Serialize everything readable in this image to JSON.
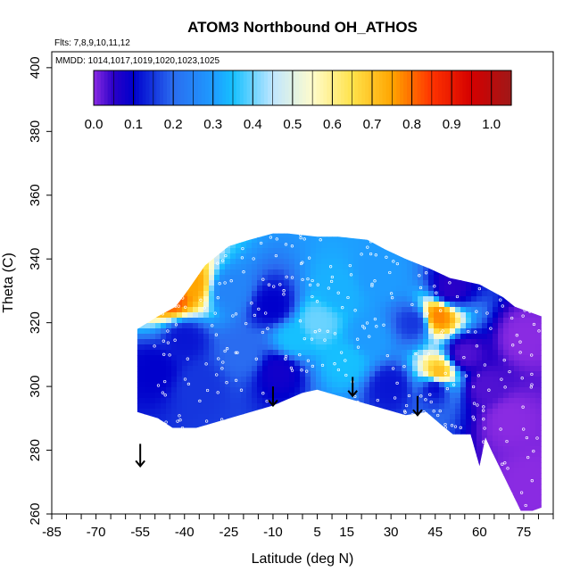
{
  "chart_data": {
    "type": "heatmap",
    "title": "ATOM3 Northbound OH_ATHOS",
    "flights_note": "Flts: 7,8,9,10,11,12",
    "dates_note": "MMDD: 1014,1017,1019,1020,1023,1025",
    "xlabel": "Latitude (deg N)",
    "ylabel": "Theta (C)",
    "xlim": [
      -85,
      85
    ],
    "ylim": [
      260,
      405
    ],
    "x_ticks": [
      {
        "value": -85,
        "label": "-85"
      },
      {
        "value": -70,
        "label": "-70"
      },
      {
        "value": -55,
        "label": "-55"
      },
      {
        "value": -40,
        "label": "-40"
      },
      {
        "value": -25,
        "label": "-25"
      },
      {
        "value": -10,
        "label": "-10"
      },
      {
        "value": 5,
        "label": "5"
      },
      {
        "value": 15,
        "label": "15"
      },
      {
        "value": 30,
        "label": "30"
      },
      {
        "value": 45,
        "label": "45"
      },
      {
        "value": 60,
        "label": "60"
      },
      {
        "value": 75,
        "label": "75"
      }
    ],
    "y_ticks": [
      {
        "value": 260,
        "label": "260"
      },
      {
        "value": 280,
        "label": "280"
      },
      {
        "value": 300,
        "label": "300"
      },
      {
        "value": 320,
        "label": "320"
      },
      {
        "value": 340,
        "label": "340"
      },
      {
        "value": 360,
        "label": "360"
      },
      {
        "value": 380,
        "label": "380"
      },
      {
        "value": 400,
        "label": "400"
      }
    ],
    "colorbar": {
      "min": 0.0,
      "max": 1.05,
      "tick_labels": [
        {
          "value": 0.0,
          "label": "0.0"
        },
        {
          "value": 0.1,
          "label": "0.1"
        },
        {
          "value": 0.2,
          "label": "0.2"
        },
        {
          "value": 0.3,
          "label": "0.3"
        },
        {
          "value": 0.4,
          "label": "0.4"
        },
        {
          "value": 0.5,
          "label": "0.5"
        },
        {
          "value": 0.6,
          "label": "0.6"
        },
        {
          "value": 0.7,
          "label": "0.7"
        },
        {
          "value": 0.8,
          "label": "0.8"
        },
        {
          "value": 0.9,
          "label": "0.9"
        },
        {
          "value": 1.0,
          "label": "1.0"
        }
      ],
      "stops": [
        {
          "value": 0.0,
          "color": "#8a2be2"
        },
        {
          "value": 0.05,
          "color": "#2a00c8"
        },
        {
          "value": 0.1,
          "color": "#0000cc"
        },
        {
          "value": 0.2,
          "color": "#2a6cf0"
        },
        {
          "value": 0.3,
          "color": "#1e9bff"
        },
        {
          "value": 0.35,
          "color": "#16c0ff"
        },
        {
          "value": 0.45,
          "color": "#bfe6ff"
        },
        {
          "value": 0.55,
          "color": "#fffccc"
        },
        {
          "value": 0.65,
          "color": "#ffe24a"
        },
        {
          "value": 0.75,
          "color": "#ffa500"
        },
        {
          "value": 0.85,
          "color": "#ff3300"
        },
        {
          "value": 0.95,
          "color": "#d40000"
        },
        {
          "value": 1.05,
          "color": "#a01818"
        }
      ]
    },
    "data_region_outline": [
      [
        -56,
        318
      ],
      [
        -56,
        292
      ],
      [
        -49,
        290
      ],
      [
        -44,
        287
      ],
      [
        -36,
        287
      ],
      [
        -10,
        294
      ],
      [
        0,
        298
      ],
      [
        5,
        299
      ],
      [
        20,
        295
      ],
      [
        35,
        291
      ],
      [
        42,
        292
      ],
      [
        47,
        288
      ],
      [
        51,
        285
      ],
      [
        57,
        285
      ],
      [
        60,
        275
      ],
      [
        62,
        284
      ],
      [
        64,
        280
      ],
      [
        74,
        261
      ],
      [
        78,
        261
      ],
      [
        81,
        262
      ],
      [
        81,
        322
      ],
      [
        72,
        325
      ],
      [
        68,
        328
      ],
      [
        60,
        332
      ],
      [
        50,
        334
      ],
      [
        43,
        337
      ],
      [
        35,
        340
      ],
      [
        28,
        343
      ],
      [
        22,
        346
      ],
      [
        12,
        347
      ],
      [
        5,
        347
      ],
      [
        -5,
        348
      ],
      [
        -10,
        348
      ],
      [
        -18,
        346
      ],
      [
        -25,
        344
      ],
      [
        -33,
        338
      ],
      [
        -39,
        330
      ],
      [
        -43,
        325
      ],
      [
        -49,
        322
      ],
      [
        -56,
        318
      ]
    ],
    "field_hotspots": [
      {
        "lat": -50,
        "theta": 305,
        "value": 0.1
      },
      {
        "lat": -40,
        "theta": 315,
        "value": 0.12
      },
      {
        "lat": -35,
        "theta": 300,
        "value": 0.15
      },
      {
        "lat": -25,
        "theta": 330,
        "value": 0.25
      },
      {
        "lat": -20,
        "theta": 310,
        "value": 0.2
      },
      {
        "lat": -10,
        "theta": 325,
        "value": 0.1
      },
      {
        "lat": -8,
        "theta": 305,
        "value": 0.08
      },
      {
        "lat": -3,
        "theta": 315,
        "value": 0.35
      },
      {
        "lat": 5,
        "theta": 320,
        "value": 0.4
      },
      {
        "lat": 12,
        "theta": 330,
        "value": 0.33
      },
      {
        "lat": 15,
        "theta": 308,
        "value": 0.35
      },
      {
        "lat": 22,
        "theta": 315,
        "value": 0.3
      },
      {
        "lat": 25,
        "theta": 335,
        "value": 0.3
      },
      {
        "lat": 30,
        "theta": 300,
        "value": 0.12
      },
      {
        "lat": 38,
        "theta": 320,
        "value": 0.15
      },
      {
        "lat": 45,
        "theta": 300,
        "value": 0.1
      },
      {
        "lat": 50,
        "theta": 330,
        "value": 0.05
      },
      {
        "lat": 55,
        "theta": 310,
        "value": 0.03
      },
      {
        "lat": 62,
        "theta": 300,
        "value": 0.03
      },
      {
        "lat": 70,
        "theta": 290,
        "value": 0.0
      },
      {
        "lat": 75,
        "theta": 315,
        "value": 0.0
      },
      {
        "lat": 78,
        "theta": 270,
        "value": 0.0
      },
      {
        "lat": -38,
        "theta": 332,
        "value": 0.75
      },
      {
        "lat": -44,
        "theta": 328,
        "value": 0.82
      },
      {
        "lat": 46,
        "theta": 322,
        "value": 0.78
      },
      {
        "lat": 46,
        "theta": 304,
        "value": 0.72
      }
    ],
    "arrows": [
      {
        "lat": -55,
        "theta_top": 282,
        "theta_bottom": 275
      },
      {
        "lat": -10,
        "theta_top": 300,
        "theta_bottom": 294
      },
      {
        "lat": 17,
        "theta_top": 303,
        "theta_bottom": 297
      },
      {
        "lat": 39,
        "theta_top": 297,
        "theta_bottom": 291
      }
    ]
  }
}
